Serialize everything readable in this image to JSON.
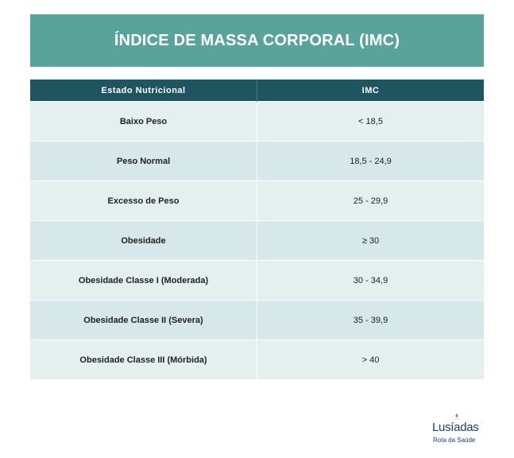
{
  "title": "ÍNDICE DE MASSA CORPORAL (IMC)",
  "table": {
    "headers": [
      "Estado Nutricional",
      "IMC"
    ],
    "rows": [
      {
        "status": "Baixo Peso",
        "imc": "< 18,5"
      },
      {
        "status": "Peso Normal",
        "imc": "18,5 - 24,9"
      },
      {
        "status": "Excesso de Peso",
        "imc": "25 - 29,9"
      },
      {
        "status": "Obesidade",
        "imc": "≥ 30"
      },
      {
        "status": "Obesidade Classe I (Moderada)",
        "imc": "30 - 34,9"
      },
      {
        "status": "Obesidade Classe II (Severa)",
        "imc": "35 - 39,9"
      },
      {
        "status": "Obesidade Classe III (Mórbida)",
        "imc": "> 40"
      }
    ]
  },
  "logo": {
    "brand": "Lusíadas",
    "tagline": "Rota da Saúde"
  },
  "colors": {
    "banner": "#5aa39a",
    "header": "#1f5560",
    "row_light": "#e3f0ee",
    "row_dark": "#d6e8e9",
    "brand": "#1e3d6b"
  }
}
